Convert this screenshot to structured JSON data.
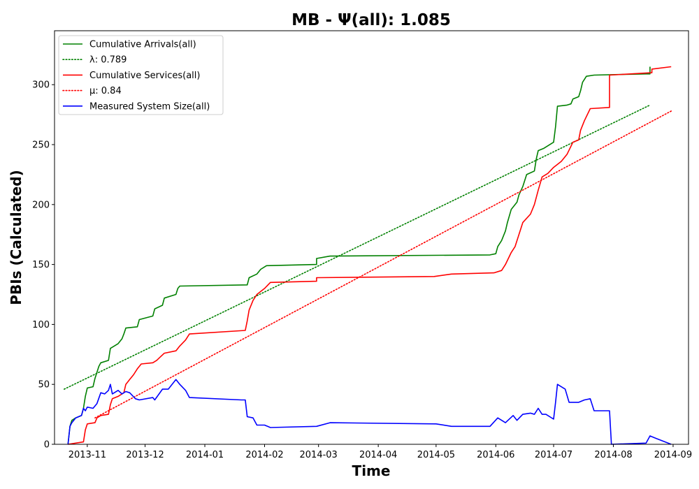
{
  "chart_data": {
    "type": "line",
    "title": "MB -  Ψ(all): 1.085",
    "xlabel": "Time",
    "ylabel": "PBIs (Calculated)",
    "xlim": [
      "2013-10-15",
      "2014-09-09"
    ],
    "ylim": [
      0,
      345
    ],
    "grid": false,
    "legend_position": "top-left",
    "x_ticks": [
      "2013-11",
      "2013-12",
      "2014-01",
      "2014-02",
      "2014-03",
      "2014-04",
      "2014-05",
      "2014-06",
      "2014-07",
      "2014-08",
      "2014-09"
    ],
    "x_tick_dates": [
      "2013-11-01",
      "2013-12-01",
      "2014-01-01",
      "2014-02-01",
      "2014-03-01",
      "2014-04-01",
      "2014-05-01",
      "2014-06-01",
      "2014-07-01",
      "2014-08-01",
      "2014-09-01"
    ],
    "y_ticks": [
      0,
      50,
      100,
      150,
      200,
      250,
      300
    ],
    "series": [
      {
        "name": "Cumulative Arrivals(all)",
        "color": "#008000",
        "style": "solid",
        "points": [
          [
            "2013-10-22",
            0
          ],
          [
            "2013-10-23",
            15
          ],
          [
            "2013-10-24",
            20
          ],
          [
            "2013-10-26",
            22
          ],
          [
            "2013-10-29",
            24
          ],
          [
            "2013-10-30",
            30
          ],
          [
            "2013-10-31",
            40
          ],
          [
            "2013-11-01",
            47
          ],
          [
            "2013-11-04",
            48
          ],
          [
            "2013-11-05",
            55
          ],
          [
            "2013-11-07",
            65
          ],
          [
            "2013-11-08",
            68
          ],
          [
            "2013-11-12",
            70
          ],
          [
            "2013-11-13",
            80
          ],
          [
            "2013-11-15",
            82
          ],
          [
            "2013-11-17",
            84
          ],
          [
            "2013-11-19",
            88
          ],
          [
            "2013-11-20",
            92
          ],
          [
            "2013-11-21",
            97
          ],
          [
            "2013-11-27",
            98
          ],
          [
            "2013-11-28",
            104
          ],
          [
            "2013-12-05",
            107
          ],
          [
            "2013-12-06",
            113
          ],
          [
            "2013-12-10",
            116
          ],
          [
            "2013-12-11",
            122
          ],
          [
            "2013-12-17",
            125
          ],
          [
            "2013-12-18",
            130
          ],
          [
            "2013-12-19",
            132
          ],
          [
            "2014-01-23",
            133
          ],
          [
            "2014-01-24",
            139
          ],
          [
            "2014-01-28",
            142
          ],
          [
            "2014-01-30",
            146
          ],
          [
            "2014-02-02",
            149
          ],
          [
            "2014-02-28",
            150
          ],
          [
            "2014-02-28",
            155
          ],
          [
            "2014-03-07",
            157
          ],
          [
            "2014-05-29",
            158
          ],
          [
            "2014-06-01",
            159
          ],
          [
            "2014-06-02",
            165
          ],
          [
            "2014-06-04",
            170
          ],
          [
            "2014-06-06",
            178
          ],
          [
            "2014-06-07",
            185
          ],
          [
            "2014-06-09",
            196
          ],
          [
            "2014-06-12",
            202
          ],
          [
            "2014-06-13",
            208
          ],
          [
            "2014-06-15",
            215
          ],
          [
            "2014-06-17",
            225
          ],
          [
            "2014-06-21",
            228
          ],
          [
            "2014-06-22",
            238
          ],
          [
            "2014-06-23",
            245
          ],
          [
            "2014-06-26",
            247
          ],
          [
            "2014-07-01",
            252
          ],
          [
            "2014-07-02",
            265
          ],
          [
            "2014-07-03",
            282
          ],
          [
            "2014-07-08",
            283
          ],
          [
            "2014-07-10",
            284
          ],
          [
            "2014-07-11",
            288
          ],
          [
            "2014-07-14",
            290
          ],
          [
            "2014-07-15",
            295
          ],
          [
            "2014-07-16",
            302
          ],
          [
            "2014-07-18",
            307
          ],
          [
            "2014-07-22",
            308
          ],
          [
            "2014-08-18",
            309
          ],
          [
            "2014-08-20",
            309
          ],
          [
            "2014-08-20",
            315
          ]
        ]
      },
      {
        "name": "λ: 0.789",
        "color": "#008000",
        "style": "dotted",
        "points": [
          [
            "2013-10-20",
            46
          ],
          [
            "2014-08-20",
            283
          ]
        ]
      },
      {
        "name": "Cumulative Services(all)",
        "color": "#ff0000",
        "style": "solid",
        "points": [
          [
            "2013-10-22",
            0
          ],
          [
            "2013-10-30",
            2
          ],
          [
            "2013-10-31",
            12
          ],
          [
            "2013-11-01",
            17
          ],
          [
            "2013-11-05",
            18
          ],
          [
            "2013-11-06",
            22
          ],
          [
            "2013-11-08",
            24
          ],
          [
            "2013-11-12",
            25
          ],
          [
            "2013-11-13",
            33
          ],
          [
            "2013-11-14",
            38
          ],
          [
            "2013-11-17",
            40
          ],
          [
            "2013-11-20",
            43
          ],
          [
            "2013-11-21",
            50
          ],
          [
            "2013-11-23",
            54
          ],
          [
            "2013-11-25",
            58
          ],
          [
            "2013-11-27",
            63
          ],
          [
            "2013-11-29",
            67
          ],
          [
            "2013-12-05",
            68
          ],
          [
            "2013-12-07",
            70
          ],
          [
            "2013-12-09",
            73
          ],
          [
            "2013-12-11",
            76
          ],
          [
            "2013-12-17",
            78
          ],
          [
            "2013-12-19",
            82
          ],
          [
            "2013-12-22",
            87
          ],
          [
            "2013-12-24",
            92
          ],
          [
            "2014-01-22",
            95
          ],
          [
            "2014-01-23",
            103
          ],
          [
            "2014-01-24",
            112
          ],
          [
            "2014-01-26",
            120
          ],
          [
            "2014-01-28",
            125
          ],
          [
            "2014-02-01",
            130
          ],
          [
            "2014-02-04",
            135
          ],
          [
            "2014-02-28",
            136
          ],
          [
            "2014-02-28",
            139
          ],
          [
            "2014-04-30",
            140
          ],
          [
            "2014-05-09",
            142
          ],
          [
            "2014-05-31",
            143
          ],
          [
            "2014-06-04",
            145
          ],
          [
            "2014-06-06",
            150
          ],
          [
            "2014-06-09",
            160
          ],
          [
            "2014-06-11",
            165
          ],
          [
            "2014-06-13",
            175
          ],
          [
            "2014-06-15",
            185
          ],
          [
            "2014-06-19",
            192
          ],
          [
            "2014-06-21",
            200
          ],
          [
            "2014-06-23",
            212
          ],
          [
            "2014-06-25",
            223
          ],
          [
            "2014-06-28",
            226
          ],
          [
            "2014-07-01",
            231
          ],
          [
            "2014-07-05",
            236
          ],
          [
            "2014-07-08",
            242
          ],
          [
            "2014-07-11",
            252
          ],
          [
            "2014-07-14",
            254
          ],
          [
            "2014-07-15",
            262
          ],
          [
            "2014-07-17",
            270
          ],
          [
            "2014-07-20",
            280
          ],
          [
            "2014-07-30",
            281
          ],
          [
            "2014-07-30",
            308
          ],
          [
            "2014-08-21",
            310
          ],
          [
            "2014-08-21",
            313
          ],
          [
            "2014-08-31",
            315
          ]
        ]
      },
      {
        "name": "μ: 0.84",
        "color": "#ff0000",
        "style": "dotted",
        "points": [
          [
            "2013-11-05",
            22
          ],
          [
            "2014-08-31",
            278
          ]
        ]
      },
      {
        "name": "Measured System Size(all)",
        "color": "#0000ff",
        "style": "solid",
        "points": [
          [
            "2013-10-22",
            0
          ],
          [
            "2013-10-23",
            15
          ],
          [
            "2013-10-24",
            18
          ],
          [
            "2013-10-26",
            22
          ],
          [
            "2013-10-29",
            24
          ],
          [
            "2013-10-30",
            30
          ],
          [
            "2013-10-31",
            28
          ],
          [
            "2013-11-01",
            31
          ],
          [
            "2013-11-04",
            30
          ],
          [
            "2013-11-06",
            34
          ],
          [
            "2013-11-08",
            43
          ],
          [
            "2013-11-10",
            42
          ],
          [
            "2013-11-12",
            45
          ],
          [
            "2013-11-13",
            50
          ],
          [
            "2013-11-14",
            42
          ],
          [
            "2013-11-17",
            45
          ],
          [
            "2013-11-19",
            42
          ],
          [
            "2013-11-21",
            44
          ],
          [
            "2013-11-23",
            43
          ],
          [
            "2013-11-26",
            38
          ],
          [
            "2013-11-28",
            37
          ],
          [
            "2013-12-05",
            39
          ],
          [
            "2013-12-06",
            37
          ],
          [
            "2013-12-10",
            46
          ],
          [
            "2013-12-13",
            46
          ],
          [
            "2013-12-17",
            54
          ],
          [
            "2013-12-19",
            50
          ],
          [
            "2013-12-22",
            45
          ],
          [
            "2013-12-24",
            39
          ],
          [
            "2014-01-20",
            37
          ],
          [
            "2014-01-22",
            37
          ],
          [
            "2014-01-23",
            23
          ],
          [
            "2014-01-26",
            22
          ],
          [
            "2014-01-28",
            16
          ],
          [
            "2014-02-01",
            16
          ],
          [
            "2014-02-04",
            14
          ],
          [
            "2014-02-28",
            15
          ],
          [
            "2014-03-07",
            18
          ],
          [
            "2014-05-01",
            17
          ],
          [
            "2014-05-09",
            15
          ],
          [
            "2014-05-29",
            15
          ],
          [
            "2014-06-02",
            22
          ],
          [
            "2014-06-06",
            18
          ],
          [
            "2014-06-10",
            24
          ],
          [
            "2014-06-12",
            20
          ],
          [
            "2014-06-15",
            25
          ],
          [
            "2014-06-19",
            26
          ],
          [
            "2014-06-21",
            25
          ],
          [
            "2014-06-23",
            30
          ],
          [
            "2014-06-25",
            25
          ],
          [
            "2014-06-27",
            25
          ],
          [
            "2014-07-01",
            21
          ],
          [
            "2014-07-02",
            35
          ],
          [
            "2014-07-03",
            50
          ],
          [
            "2014-07-07",
            46
          ],
          [
            "2014-07-09",
            35
          ],
          [
            "2014-07-14",
            35
          ],
          [
            "2014-07-17",
            37
          ],
          [
            "2014-07-20",
            38
          ],
          [
            "2014-07-22",
            28
          ],
          [
            "2014-07-30",
            28
          ],
          [
            "2014-07-31",
            0
          ],
          [
            "2014-08-18",
            1
          ],
          [
            "2014-08-20",
            7
          ],
          [
            "2014-08-23",
            5
          ],
          [
            "2014-08-31",
            0
          ]
        ]
      }
    ]
  }
}
